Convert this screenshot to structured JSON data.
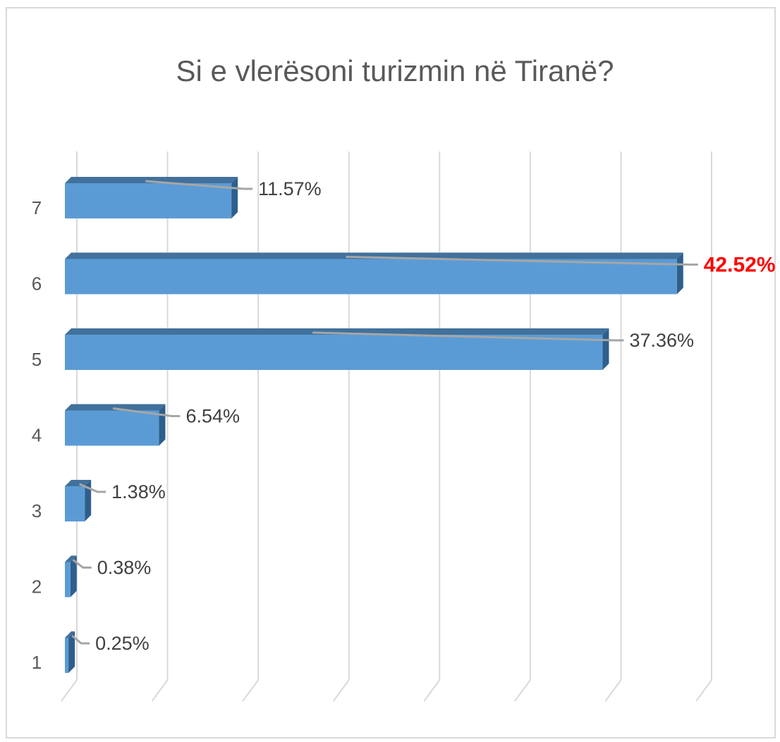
{
  "chart_data": {
    "type": "bar3d_horizontal",
    "title": "Si e vlerësoni turizmin në Tiranë?",
    "categories": [
      "1",
      "2",
      "3",
      "4",
      "5",
      "6",
      "7"
    ],
    "values": [
      0.25,
      0.38,
      1.38,
      6.54,
      37.36,
      42.52,
      11.57
    ],
    "value_labels": [
      "0.25%",
      "0.38%",
      "1.38%",
      "6.54%",
      "37.36%",
      "42.52%",
      "11.57%"
    ],
    "value_label_colors": [
      "#404040",
      "#404040",
      "#404040",
      "#404040",
      "#404040",
      "#ff0000",
      "#404040"
    ],
    "color": "#5b9bd5",
    "xlim": [
      0,
      44.1
    ],
    "xticks": [
      0,
      6.3,
      12.6,
      18.9,
      25.2,
      31.5,
      37.8,
      44.1
    ],
    "grid": true
  }
}
